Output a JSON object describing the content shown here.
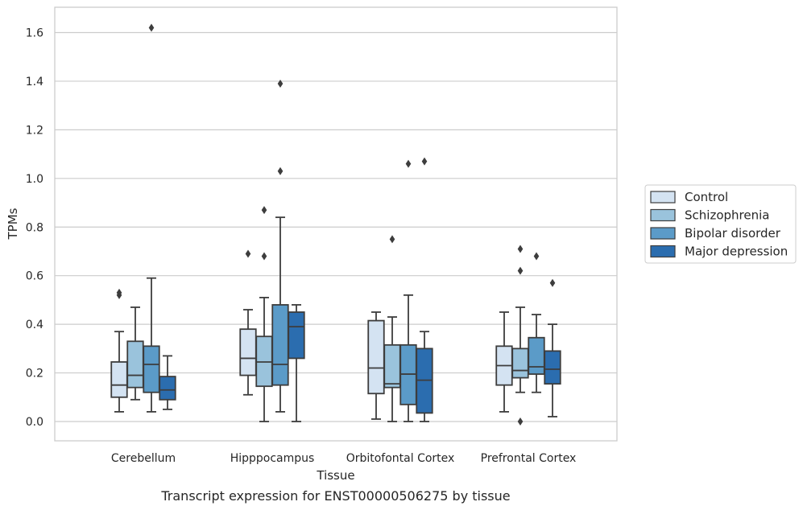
{
  "chart_data": {
    "type": "box",
    "xlabel": "Tissue",
    "ylabel": "TPMs",
    "caption": "Transcript expression for ENST00000506275 by tissue",
    "ylim": [
      -0.08,
      1.7
    ],
    "yticks": [
      0.0,
      0.2,
      0.4,
      0.6,
      0.8,
      1.0,
      1.2,
      1.4,
      1.6
    ],
    "ytick_labels": [
      "0.0",
      "0.2",
      "0.4",
      "0.6",
      "0.8",
      "1.0",
      "1.2",
      "1.4",
      "1.6"
    ],
    "grid": "horizontal",
    "legend_placement": "outside-right",
    "categories": [
      "Cerebellum",
      "Hipppocampus",
      "Orbitofontal Cortex",
      "Prefrontal Cortex"
    ],
    "series": [
      {
        "name": "Control",
        "color": "#d4e3f2",
        "boxes": [
          {
            "whislo": 0.04,
            "q1": 0.1,
            "med": 0.15,
            "q3": 0.245,
            "whishi": 0.37,
            "fliers": [
              0.52,
              0.53
            ]
          },
          {
            "whislo": 0.11,
            "q1": 0.19,
            "med": 0.26,
            "q3": 0.38,
            "whishi": 0.46,
            "fliers": [
              0.69
            ]
          },
          {
            "whislo": 0.01,
            "q1": 0.115,
            "med": 0.22,
            "q3": 0.415,
            "whishi": 0.45,
            "fliers": []
          },
          {
            "whislo": 0.04,
            "q1": 0.15,
            "med": 0.23,
            "q3": 0.31,
            "whishi": 0.45,
            "fliers": []
          }
        ]
      },
      {
        "name": "Schizophrenia",
        "color": "#9ac3dc",
        "boxes": [
          {
            "whislo": 0.09,
            "q1": 0.14,
            "med": 0.19,
            "q3": 0.33,
            "whishi": 0.47,
            "fliers": []
          },
          {
            "whislo": 0.0,
            "q1": 0.145,
            "med": 0.245,
            "q3": 0.35,
            "whishi": 0.51,
            "fliers": [
              0.68,
              0.87
            ]
          },
          {
            "whislo": 0.0,
            "q1": 0.14,
            "med": 0.155,
            "q3": 0.315,
            "whishi": 0.43,
            "fliers": [
              0.75
            ]
          },
          {
            "whislo": 0.12,
            "q1": 0.18,
            "med": 0.21,
            "q3": 0.3,
            "whishi": 0.47,
            "fliers": [
              0.0,
              0.62,
              0.71
            ]
          }
        ]
      },
      {
        "name": "Bipolar disorder",
        "color": "#5b9bc8",
        "boxes": [
          {
            "whislo": 0.04,
            "q1": 0.12,
            "med": 0.235,
            "q3": 0.31,
            "whishi": 0.59,
            "fliers": [
              1.62
            ]
          },
          {
            "whislo": 0.04,
            "q1": 0.15,
            "med": 0.235,
            "q3": 0.48,
            "whishi": 0.84,
            "fliers": [
              1.03,
              1.39
            ]
          },
          {
            "whislo": 0.0,
            "q1": 0.07,
            "med": 0.195,
            "q3": 0.315,
            "whishi": 0.52,
            "fliers": [
              1.06
            ]
          },
          {
            "whislo": 0.12,
            "q1": 0.195,
            "med": 0.225,
            "q3": 0.345,
            "whishi": 0.44,
            "fliers": [
              0.68
            ]
          }
        ]
      },
      {
        "name": "Major depression",
        "color": "#2b6daf",
        "boxes": [
          {
            "whislo": 0.05,
            "q1": 0.09,
            "med": 0.13,
            "q3": 0.185,
            "whishi": 0.27,
            "fliers": []
          },
          {
            "whislo": 0.0,
            "q1": 0.26,
            "med": 0.39,
            "q3": 0.45,
            "whishi": 0.48,
            "fliers": []
          },
          {
            "whislo": 0.0,
            "q1": 0.035,
            "med": 0.17,
            "q3": 0.3,
            "whishi": 0.37,
            "fliers": [
              1.07
            ]
          },
          {
            "whislo": 0.02,
            "q1": 0.155,
            "med": 0.215,
            "q3": 0.29,
            "whishi": 0.4,
            "fliers": [
              0.57
            ]
          }
        ]
      }
    ]
  }
}
